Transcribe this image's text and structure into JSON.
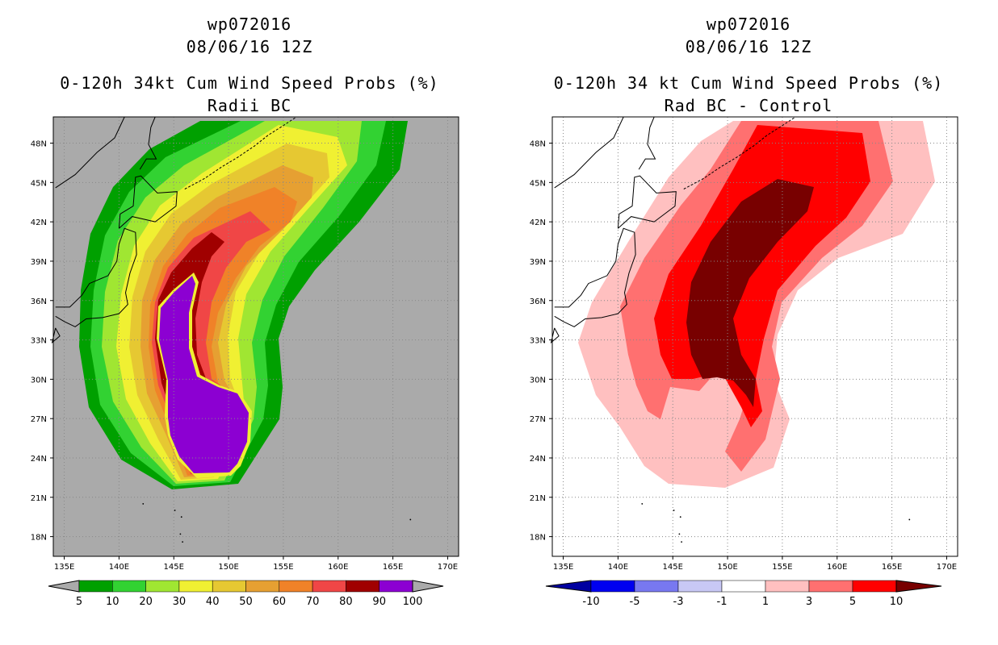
{
  "chart_data": [
    {
      "type": "heatmap",
      "storm": "wp072016",
      "date": "08/06/16 12Z",
      "title": "0-120h 34kt Cum Wind Speed Probs (%)",
      "subtitle": "Radii BC",
      "xlim": [
        134,
        171
      ],
      "ylim": [
        16.5,
        50
      ],
      "x_ticks": [
        "135E",
        "140E",
        "145E",
        "150E",
        "155E",
        "160E",
        "165E",
        "170E"
      ],
      "y_ticks": [
        "18N",
        "21N",
        "24N",
        "27N",
        "30N",
        "33N",
        "36N",
        "39N",
        "42N",
        "45N",
        "48N"
      ],
      "colorbar": {
        "levels": [
          "5",
          "10",
          "20",
          "30",
          "40",
          "50",
          "60",
          "70",
          "80",
          "90",
          "100"
        ],
        "colors": [
          "#00a000",
          "#32d232",
          "#a0e632",
          "#f0f032",
          "#e6c832",
          "#e6a032",
          "#f08228",
          "#f04646",
          "#a00000",
          "#8c00d2"
        ]
      },
      "background": "#aaaaaa"
    },
    {
      "type": "heatmap",
      "storm": "wp072016",
      "date": "08/06/16 12Z",
      "title": "0-120h 34 kt Cum Wind Speed Probs (%)",
      "subtitle": "Rad BC - Control",
      "xlim": [
        134,
        171
      ],
      "ylim": [
        16.5,
        50
      ],
      "x_ticks": [
        "135E",
        "140E",
        "145E",
        "150E",
        "155E",
        "160E",
        "165E",
        "170E"
      ],
      "y_ticks": [
        "18N",
        "21N",
        "24N",
        "27N",
        "30N",
        "33N",
        "36N",
        "39N",
        "42N",
        "45N",
        "48N"
      ],
      "colorbar": {
        "levels": [
          "-10",
          "-5",
          "-3",
          "-1",
          "1",
          "3",
          "5",
          "10"
        ],
        "colors": [
          "#0000a0",
          "#0000f0",
          "#7878f0",
          "#c8c8f5",
          "#ffffff",
          "#ffc0c0",
          "#ff7070",
          "#ff0000",
          "#780000"
        ]
      },
      "background": "#ffffff"
    }
  ]
}
